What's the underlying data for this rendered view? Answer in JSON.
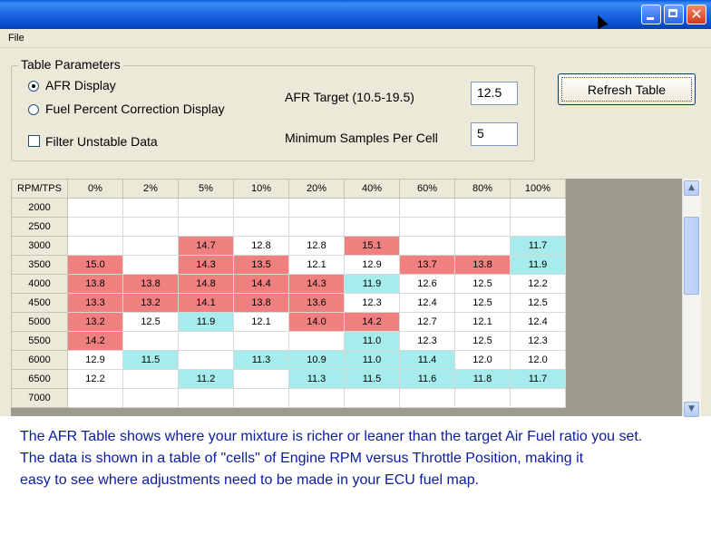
{
  "menu": {
    "file": "File"
  },
  "params": {
    "group_title": "Table Parameters",
    "afr_display": "AFR Display",
    "fuel_display": "Fuel Percent Correction Display",
    "filter_unstable": "Filter Unstable Data",
    "selected_display": "AFR Display",
    "filter_checked": false
  },
  "target": {
    "label": "AFR Target (10.5-19.5)",
    "value": "12.5"
  },
  "samples": {
    "label": "Minimum Samples Per Cell",
    "value": "5"
  },
  "refresh": {
    "label": "Refresh Table"
  },
  "table": {
    "corner": "RPM/TPS",
    "columns": [
      "0%",
      "2%",
      "5%",
      "10%",
      "20%",
      "40%",
      "60%",
      "80%",
      "100%"
    ],
    "rows": [
      {
        "rpm": "2000",
        "cells": [
          "",
          "",
          "",
          "",
          "",
          "",
          "",
          "",
          ""
        ]
      },
      {
        "rpm": "2500",
        "cells": [
          "",
          "",
          "",
          "",
          "",
          "",
          "",
          "",
          ""
        ]
      },
      {
        "rpm": "3000",
        "cells": [
          "",
          "",
          "14.7",
          "12.8",
          "12.8",
          "15.1",
          "",
          "",
          "11.7"
        ]
      },
      {
        "rpm": "3500",
        "cells": [
          "15.0",
          "",
          "14.3",
          "13.5",
          "12.1",
          "12.9",
          "13.7",
          "13.8",
          "11.9"
        ]
      },
      {
        "rpm": "4000",
        "cells": [
          "13.8",
          "13.8",
          "14.8",
          "14.4",
          "14.3",
          "11.9",
          "12.6",
          "12.5",
          "12.2"
        ]
      },
      {
        "rpm": "4500",
        "cells": [
          "13.3",
          "13.2",
          "14.1",
          "13.8",
          "13.6",
          "12.3",
          "12.4",
          "12.5",
          "12.5"
        ]
      },
      {
        "rpm": "5000",
        "cells": [
          "13.2",
          "12.5",
          "11.9",
          "12.1",
          "14.0",
          "14.2",
          "12.7",
          "12.1",
          "12.4"
        ]
      },
      {
        "rpm": "5500",
        "cells": [
          "14.2",
          "",
          "",
          "",
          "",
          "11.0",
          "12.3",
          "12.5",
          "12.3"
        ]
      },
      {
        "rpm": "6000",
        "cells": [
          "12.9",
          "11.5",
          "",
          "11.3",
          "10.9",
          "11.0",
          "11.4",
          "12.0",
          "12.0"
        ]
      },
      {
        "rpm": "6500",
        "cells": [
          "12.2",
          "",
          "11.2",
          "",
          "11.3",
          "11.5",
          "11.6",
          "11.8",
          "11.7"
        ]
      },
      {
        "rpm": "7000",
        "cells": [
          "",
          "",
          "",
          "",
          "",
          "",
          "",
          "",
          ""
        ]
      }
    ],
    "colors": {
      "rich": "#f08080",
      "lean": "#a6ecec",
      "neutral": "#ffffff"
    }
  },
  "description": [
    "The AFR Table shows where your mixture is richer or leaner than the target Air Fuel ratio you set.",
    "The data is shown in a table of \"cells\" of Engine RPM versus Throttle Position, making it",
    "easy to see where adjustments need to be made in your ECU fuel map."
  ]
}
